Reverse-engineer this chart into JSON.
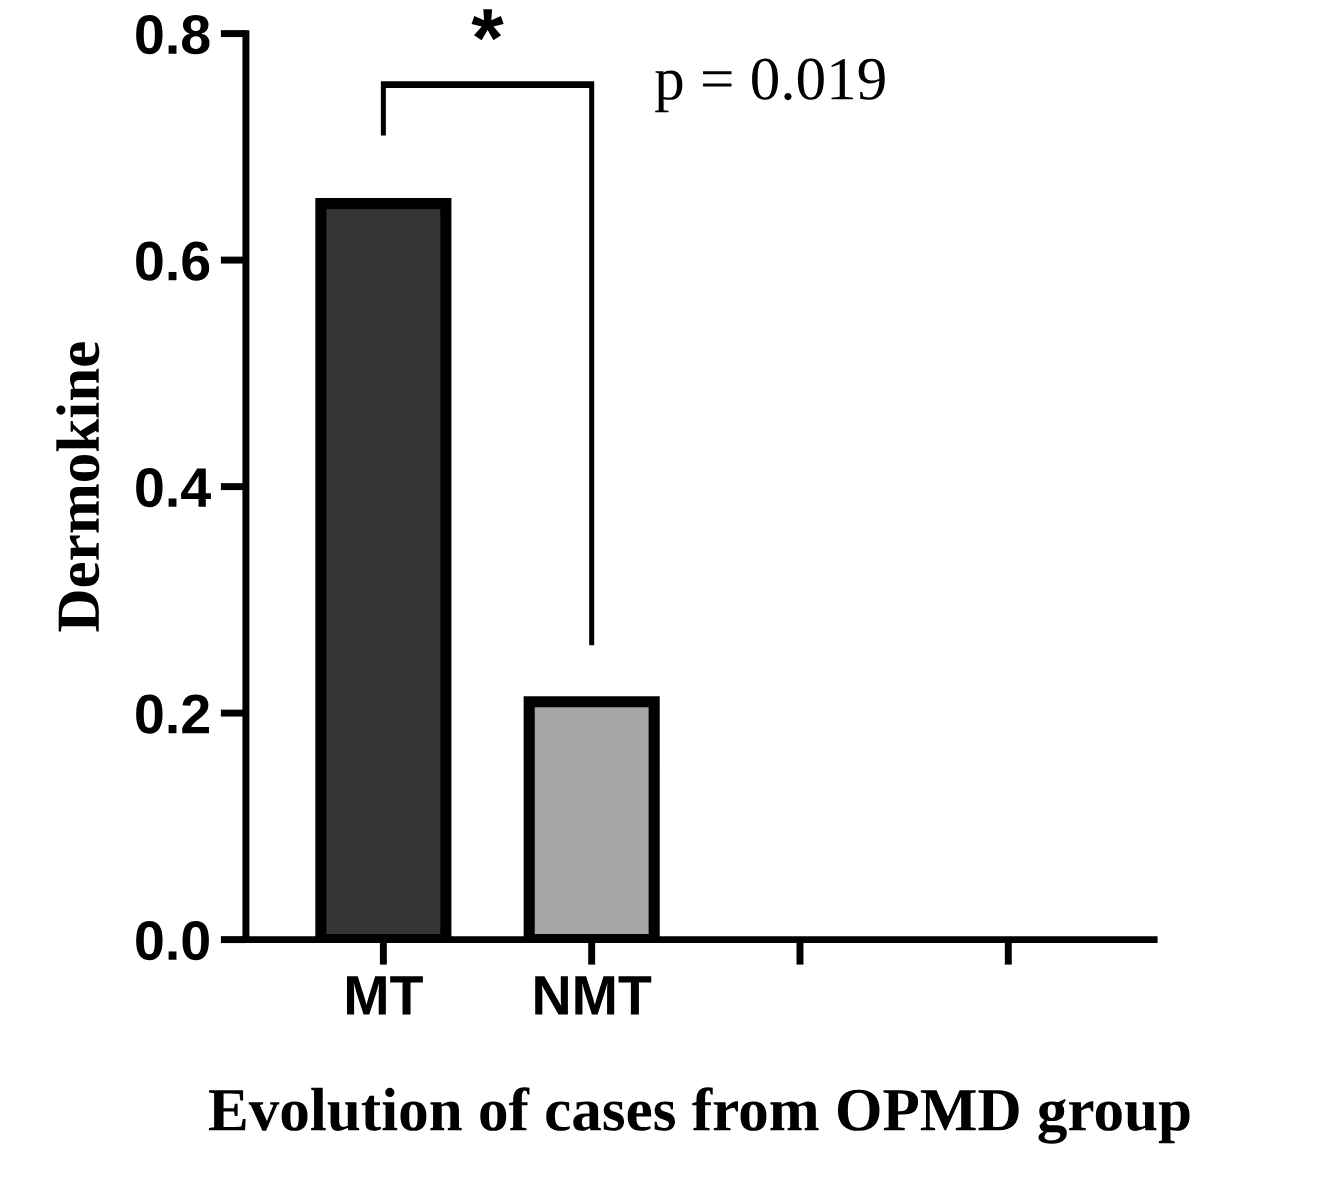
{
  "chart_data": {
    "type": "bar",
    "categories": [
      "MT",
      "NMT",
      null,
      null
    ],
    "values": [
      0.65,
      0.21,
      null,
      null
    ],
    "colors": [
      "#353535",
      "#a6a6a6",
      "#353535",
      "#a6a6a6"
    ],
    "ylabel": "Dermokine",
    "xlabel": "Evolution of cases from OPMD group",
    "ylim": [
      0,
      0.8
    ],
    "yticks": [
      {
        "value": 0,
        "label": "0.0"
      },
      {
        "value": 0.2,
        "label": "0.2"
      },
      {
        "value": 0.4,
        "label": "0.4"
      },
      {
        "value": 0.6,
        "label": "0.6"
      },
      {
        "value": 0.8,
        "label": "0.8"
      }
    ],
    "annotations": [
      "*",
      "p = 0.019"
    ],
    "grid": false,
    "legend": false
  }
}
